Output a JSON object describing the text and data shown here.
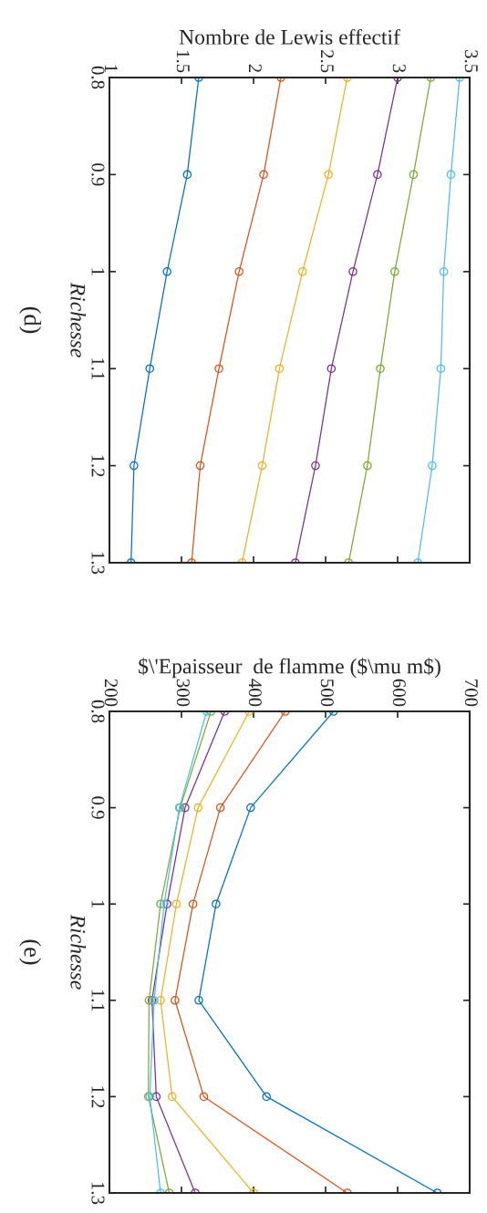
{
  "chart_data": [
    {
      "type": "line",
      "xlabel": "Nombre de Lewis effectif",
      "ylabel": "Richesse",
      "annotations": [
        "(d)"
      ],
      "marker": "circle",
      "xlim": [
        1,
        3.5
      ],
      "xticks": [
        1,
        1.5,
        2,
        2.5,
        3,
        3.5
      ],
      "ylim": [
        1.3,
        0.8
      ],
      "yticks": [
        0.8,
        0.9,
        1,
        1.1,
        1.2,
        1.3
      ],
      "series": [
        {
          "color": "#0072bd",
          "x": [
            1.62,
            1.54,
            1.4,
            1.28,
            1.17,
            1.15
          ],
          "values": [
            0.8,
            0.9,
            1,
            1.1,
            1.2,
            1.3
          ]
        },
        {
          "color": "#d95319",
          "x": [
            2.19,
            2.07,
            1.9,
            1.76,
            1.63,
            1.57
          ],
          "values": [
            0.8,
            0.9,
            1,
            1.1,
            1.2,
            1.3
          ]
        },
        {
          "color": "#edb120",
          "x": [
            2.65,
            2.52,
            2.34,
            2.18,
            2.06,
            1.92
          ],
          "values": [
            0.8,
            0.9,
            1,
            1.1,
            1.2,
            1.3
          ]
        },
        {
          "color": "#7e2f8e",
          "x": [
            3.0,
            2.86,
            2.69,
            2.54,
            2.43,
            2.29
          ],
          "values": [
            0.8,
            0.9,
            1,
            1.1,
            1.2,
            1.3
          ]
        },
        {
          "color": "#77ac30",
          "x": [
            3.23,
            3.11,
            2.98,
            2.88,
            2.79,
            2.66
          ],
          "values": [
            0.8,
            0.9,
            1,
            1.1,
            1.2,
            1.3
          ]
        },
        {
          "color": "#4dbeee",
          "x": [
            3.43,
            3.37,
            3.32,
            3.3,
            3.24,
            3.14
          ],
          "values": [
            0.8,
            0.9,
            1,
            1.1,
            1.2,
            1.3
          ]
        }
      ]
    },
    {
      "type": "line",
      "xlabel": "$\\'Epaisseur  de flamme ($\\mu m$)",
      "ylabel": "Richesse",
      "annotations": [
        "(e)"
      ],
      "marker": "circle",
      "xlim": [
        200,
        700
      ],
      "xticks": [
        200,
        300,
        400,
        500,
        600,
        700
      ],
      "ylim": [
        1.3,
        0.8
      ],
      "yticks": [
        0.8,
        0.9,
        1,
        1.1,
        1.2,
        1.3
      ],
      "series": [
        {
          "color": "#0072bd",
          "x": [
            511,
            396,
            348,
            324,
            418,
            655
          ],
          "values": [
            0.8,
            0.9,
            1,
            1.1,
            1.2,
            1.3
          ]
        },
        {
          "color": "#d95319",
          "x": [
            444,
            354,
            316,
            291,
            331,
            530
          ],
          "values": [
            0.8,
            0.9,
            1,
            1.1,
            1.2,
            1.3
          ]
        },
        {
          "color": "#edb120",
          "x": [
            394,
            323,
            293,
            271,
            287,
            400
          ],
          "values": [
            0.8,
            0.9,
            1,
            1.1,
            1.2,
            1.3
          ]
        },
        {
          "color": "#7e2f8e",
          "x": [
            360,
            305,
            280,
            259,
            265,
            319
          ],
          "values": [
            0.8,
            0.9,
            1,
            1.1,
            1.2,
            1.3
          ]
        },
        {
          "color": "#77ac30",
          "x": [
            341,
            298,
            271,
            255,
            254,
            283
          ],
          "values": [
            0.8,
            0.9,
            1,
            1.1,
            1.2,
            1.3
          ]
        },
        {
          "color": "#4dbeee",
          "x": [
            335,
            297,
            276,
            262,
            256,
            271
          ],
          "values": [
            0.8,
            0.9,
            1,
            1.1,
            1.2,
            1.3
          ]
        }
      ]
    }
  ]
}
